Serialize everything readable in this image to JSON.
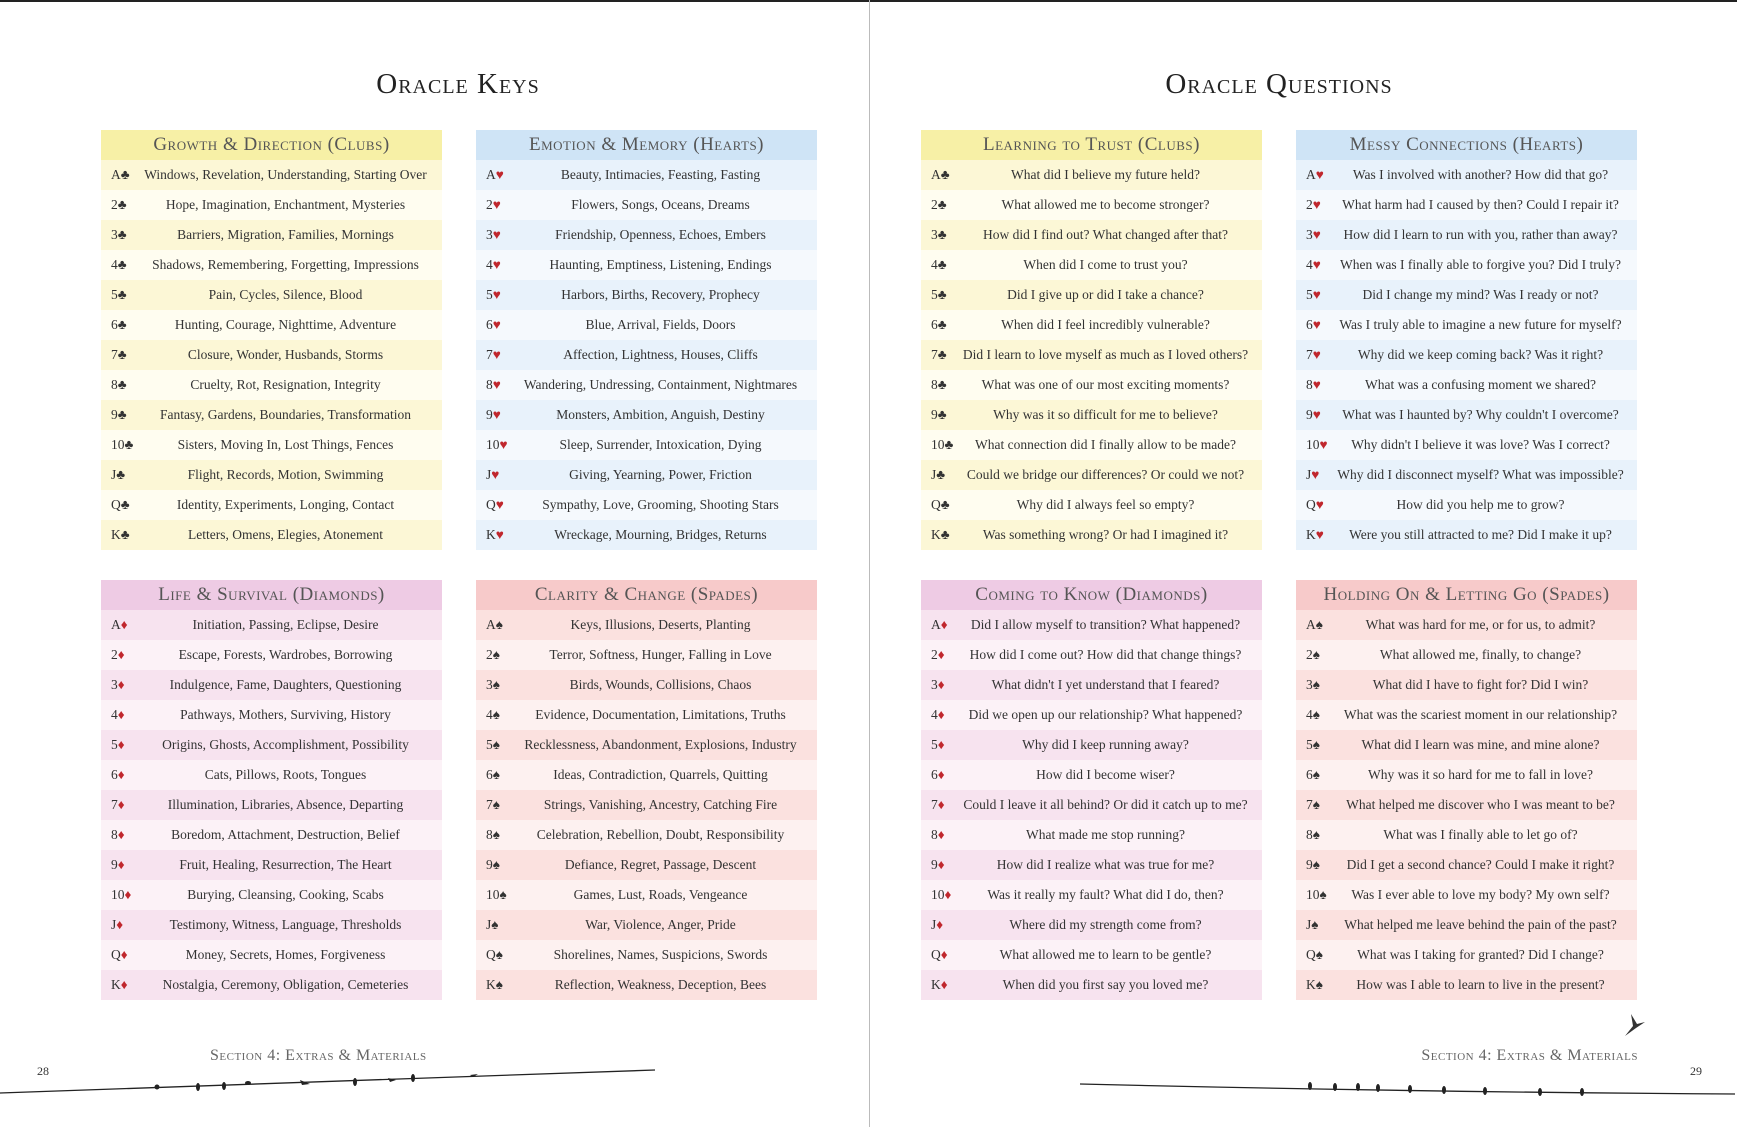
{
  "left_page": {
    "title": "Oracle Keys",
    "footer": "Section 4: Extras & Materials",
    "page_number": "28"
  },
  "right_page": {
    "title": "Oracle Questions",
    "footer": "Section 4: Extras & Materials",
    "page_number": "29"
  },
  "colors": {
    "clubs": {
      "head": "#f7f0a6",
      "a": "#fcf7d6",
      "b": "#fffdf0"
    },
    "hearts": {
      "head": "#cfe4f6",
      "a": "#e8f2fb",
      "b": "#f5f9fd"
    },
    "diamonds": {
      "head": "#eecbe4",
      "a": "#f7e3ef",
      "b": "#fcf2f7"
    },
    "spades": {
      "head": "#f7caca",
      "a": "#fbe1df",
      "b": "#fdf1f0"
    },
    "suit_red": "#c0272d"
  },
  "tables": [
    {
      "title": "Growth & Direction (Clubs)",
      "suit": "♣",
      "scheme": "clubs",
      "rows": [
        {
          "card": "A",
          "text": "Windows, Revelation, Understanding, Starting Over"
        },
        {
          "card": "2",
          "text": "Hope, Imagination, Enchantment, Mysteries"
        },
        {
          "card": "3",
          "text": "Barriers, Migration, Families, Mornings"
        },
        {
          "card": "4",
          "text": "Shadows, Remembering, Forgetting, Impressions"
        },
        {
          "card": "5",
          "text": "Pain, Cycles, Silence, Blood"
        },
        {
          "card": "6",
          "text": "Hunting, Courage, Nighttime, Adventure"
        },
        {
          "card": "7",
          "text": "Closure, Wonder, Husbands, Storms"
        },
        {
          "card": "8",
          "text": "Cruelty, Rot, Resignation, Integrity"
        },
        {
          "card": "9",
          "text": "Fantasy, Gardens, Boundaries, Transformation"
        },
        {
          "card": "10",
          "text": "Sisters, Moving In, Lost Things, Fences"
        },
        {
          "card": "J",
          "text": "Flight, Records, Motion, Swimming"
        },
        {
          "card": "Q",
          "text": "Identity, Experiments, Longing, Contact"
        },
        {
          "card": "K",
          "text": "Letters, Omens, Elegies, Atonement"
        }
      ]
    },
    {
      "title": "Emotion & Memory (Hearts)",
      "suit": "♥",
      "scheme": "hearts",
      "rows": [
        {
          "card": "A",
          "text": "Beauty, Intimacies, Feasting, Fasting"
        },
        {
          "card": "2",
          "text": "Flowers, Songs, Oceans, Dreams"
        },
        {
          "card": "3",
          "text": "Friendship, Openness, Echoes, Embers"
        },
        {
          "card": "4",
          "text": "Haunting, Emptiness, Listening, Endings"
        },
        {
          "card": "5",
          "text": "Harbors, Births, Recovery, Prophecy"
        },
        {
          "card": "6",
          "text": "Blue, Arrival, Fields, Doors"
        },
        {
          "card": "7",
          "text": "Affection, Lightness, Houses, Cliffs"
        },
        {
          "card": "8",
          "text": "Wandering, Undressing, Containment, Nightmares"
        },
        {
          "card": "9",
          "text": "Monsters, Ambition, Anguish, Destiny"
        },
        {
          "card": "10",
          "text": "Sleep, Surrender, Intoxication, Dying"
        },
        {
          "card": "J",
          "text": "Giving, Yearning, Power, Friction"
        },
        {
          "card": "Q",
          "text": "Sympathy, Love, Grooming, Shooting Stars"
        },
        {
          "card": "K",
          "text": "Wreckage, Mourning, Bridges, Returns"
        }
      ]
    },
    {
      "title": "Life & Survival (Diamonds)",
      "suit": "♦",
      "scheme": "diamonds",
      "rows": [
        {
          "card": "A",
          "text": "Initiation, Passing, Eclipse, Desire"
        },
        {
          "card": "2",
          "text": "Escape, Forests, Wardrobes, Borrowing"
        },
        {
          "card": "3",
          "text": "Indulgence, Fame, Daughters, Questioning"
        },
        {
          "card": "4",
          "text": "Pathways, Mothers, Surviving, History"
        },
        {
          "card": "5",
          "text": "Origins, Ghosts, Accomplishment, Possibility"
        },
        {
          "card": "6",
          "text": "Cats, Pillows, Roots, Tongues"
        },
        {
          "card": "7",
          "text": "Illumination, Libraries, Absence, Departing"
        },
        {
          "card": "8",
          "text": "Boredom, Attachment, Destruction, Belief"
        },
        {
          "card": "9",
          "text": "Fruit, Healing, Resurrection, The Heart"
        },
        {
          "card": "10",
          "text": "Burying, Cleansing, Cooking, Scabs"
        },
        {
          "card": "J",
          "text": "Testimony, Witness, Language, Thresholds"
        },
        {
          "card": "Q",
          "text": "Money, Secrets, Homes, Forgiveness"
        },
        {
          "card": "K",
          "text": "Nostalgia, Ceremony, Obligation, Cemeteries"
        }
      ]
    },
    {
      "title": "Clarity & Change (Spades)",
      "suit": "♠",
      "scheme": "spades",
      "rows": [
        {
          "card": "A",
          "text": "Keys, Illusions, Deserts, Planting"
        },
        {
          "card": "2",
          "text": "Terror, Softness, Hunger, Falling in Love"
        },
        {
          "card": "3",
          "text": "Birds, Wounds, Collisions, Chaos"
        },
        {
          "card": "4",
          "text": "Evidence, Documentation, Limitations, Truths"
        },
        {
          "card": "5",
          "text": "Recklessness, Abandonment, Explosions, Industry"
        },
        {
          "card": "6",
          "text": "Ideas, Contradiction, Quarrels, Quitting"
        },
        {
          "card": "7",
          "text": "Strings, Vanishing, Ancestry, Catching Fire"
        },
        {
          "card": "8",
          "text": "Celebration, Rebellion, Doubt, Responsibility"
        },
        {
          "card": "9",
          "text": "Defiance, Regret, Passage, Descent"
        },
        {
          "card": "10",
          "text": "Games, Lust, Roads, Vengeance"
        },
        {
          "card": "J",
          "text": "War, Violence, Anger, Pride"
        },
        {
          "card": "Q",
          "text": "Shorelines, Names, Suspicions, Swords"
        },
        {
          "card": "K",
          "text": "Reflection, Weakness, Deception, Bees"
        }
      ]
    },
    {
      "title": "Learning to Trust (Clubs)",
      "suit": "♣",
      "scheme": "clubs",
      "rows": [
        {
          "card": "A",
          "text": "What did I believe my future held?"
        },
        {
          "card": "2",
          "text": "What allowed me to become stronger?"
        },
        {
          "card": "3",
          "text": "How did I find out? What changed after that?"
        },
        {
          "card": "4",
          "text": "When did I come to trust you?"
        },
        {
          "card": "5",
          "text": "Did I give up or did I take a chance?"
        },
        {
          "card": "6",
          "text": "When did I feel incredibly vulnerable?"
        },
        {
          "card": "7",
          "text": "Did I learn to love myself as much as I loved others?"
        },
        {
          "card": "8",
          "text": "What was one of our most exciting moments?"
        },
        {
          "card": "9",
          "text": "Why was it so difficult for me to believe?"
        },
        {
          "card": "10",
          "text": "What connection did I finally allow to be made?"
        },
        {
          "card": "J",
          "text": "Could we bridge our differences? Or could we not?"
        },
        {
          "card": "Q",
          "text": "Why did I always feel so empty?"
        },
        {
          "card": "K",
          "text": "Was something wrong? Or had I imagined it?"
        }
      ]
    },
    {
      "title": "Messy Connections (Hearts)",
      "suit": "♥",
      "scheme": "hearts",
      "rows": [
        {
          "card": "A",
          "text": "Was I involved with another? How did that go?"
        },
        {
          "card": "2",
          "text": "What harm had I caused by then? Could I repair it?"
        },
        {
          "card": "3",
          "text": "How did I learn to run with you, rather than away?"
        },
        {
          "card": "4",
          "text": "When was I finally able to forgive you? Did I truly?"
        },
        {
          "card": "5",
          "text": "Did I change my mind? Was I ready or not?"
        },
        {
          "card": "6",
          "text": "Was I truly able to imagine a new future for myself?"
        },
        {
          "card": "7",
          "text": "Why did we keep coming back? Was it right?"
        },
        {
          "card": "8",
          "text": "What was a confusing moment we shared?"
        },
        {
          "card": "9",
          "text": "What was I haunted by? Why couldn't I overcome?"
        },
        {
          "card": "10",
          "text": "Why didn't I believe it was love? Was I correct?"
        },
        {
          "card": "J",
          "text": "Why did I disconnect myself? What was impossible?"
        },
        {
          "card": "Q",
          "text": "How did you help me to grow?"
        },
        {
          "card": "K",
          "text": "Were you still attracted to me? Did I make it up?"
        }
      ]
    },
    {
      "title": "Coming to Know (Diamonds)",
      "suit": "♦",
      "scheme": "diamonds",
      "rows": [
        {
          "card": "A",
          "text": "Did I allow myself to transition? What happened?"
        },
        {
          "card": "2",
          "text": "How did I come out? How did that change things?"
        },
        {
          "card": "3",
          "text": "What didn't I yet understand that I feared?"
        },
        {
          "card": "4",
          "text": "Did we open up our relationship? What happened?"
        },
        {
          "card": "5",
          "text": "Why did I keep running away?"
        },
        {
          "card": "6",
          "text": "How did I become wiser?"
        },
        {
          "card": "7",
          "text": "Could I leave it all behind? Or did it catch up to me?"
        },
        {
          "card": "8",
          "text": "What made me stop running?"
        },
        {
          "card": "9",
          "text": "How did I realize what was true for me?"
        },
        {
          "card": "10",
          "text": "Was it really my fault? What did I do, then?"
        },
        {
          "card": "J",
          "text": "Where did my strength come from?"
        },
        {
          "card": "Q",
          "text": "What allowed me to learn to be gentle?"
        },
        {
          "card": "K",
          "text": "When did you first say you loved me?"
        }
      ]
    },
    {
      "title": "Holding On & Letting Go (Spades)",
      "suit": "♠",
      "scheme": "spades",
      "rows": [
        {
          "card": "A",
          "text": "What was hard for me, or for us, to admit?"
        },
        {
          "card": "2",
          "text": "What allowed me, finally, to change?"
        },
        {
          "card": "3",
          "text": "What did I have to fight for? Did I win?"
        },
        {
          "card": "4",
          "text": "What was the scariest moment in our relationship?"
        },
        {
          "card": "5",
          "text": "What did I learn was mine, and mine alone?"
        },
        {
          "card": "6",
          "text": "Why was it so hard for me to fall in love?"
        },
        {
          "card": "7",
          "text": "What helped me discover who I was meant to be?"
        },
        {
          "card": "8",
          "text": "What was I finally able to let go of?"
        },
        {
          "card": "9",
          "text": "Did I get a second chance? Could I make it right?"
        },
        {
          "card": "10",
          "text": "Was I ever able to love my body? My own self?"
        },
        {
          "card": "J",
          "text": "What helped me leave behind the pain of the past?"
        },
        {
          "card": "Q",
          "text": "What was I taking for granted? Did I change?"
        },
        {
          "card": "K",
          "text": "How was I able to learn to live in the present?"
        }
      ]
    }
  ]
}
